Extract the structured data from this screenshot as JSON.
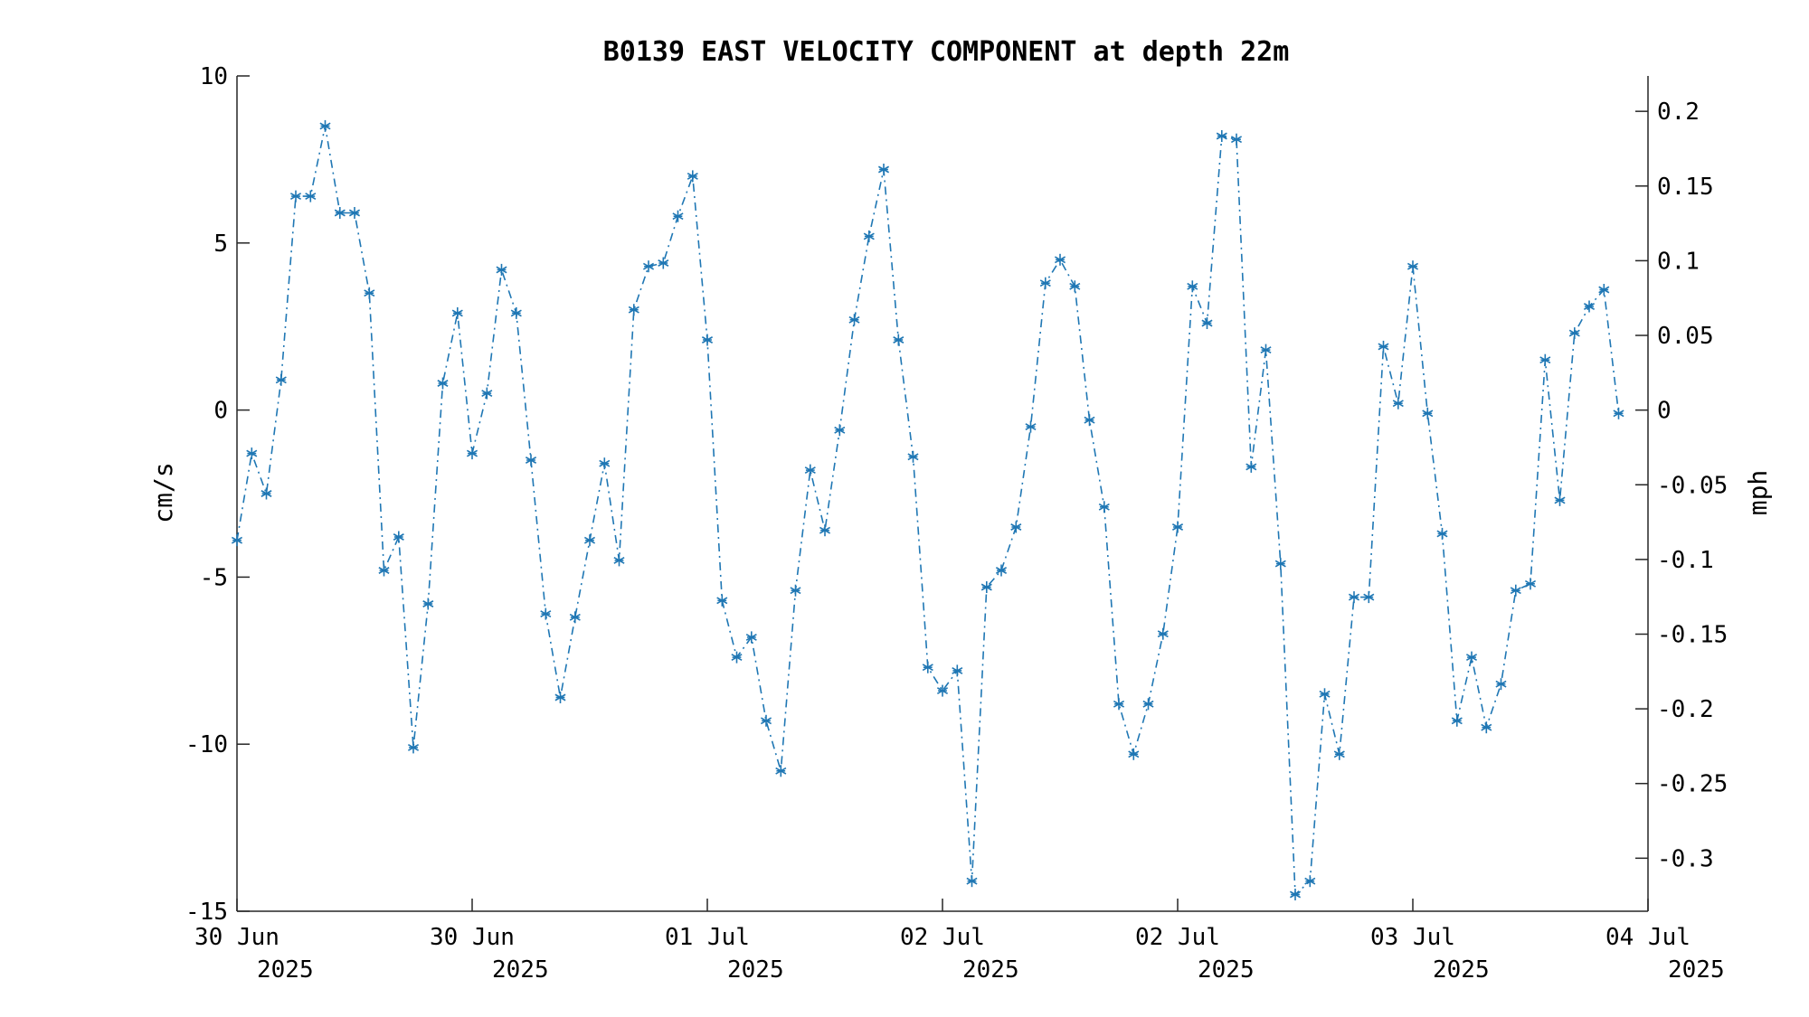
{
  "chart_data": {
    "type": "line",
    "title": "B0139 EAST VELOCITY COMPONENT at depth 22m",
    "ylabel": "cm/s",
    "ylabel_right": "mph",
    "ylim": [
      -15,
      10
    ],
    "y_ticks": [
      "10",
      "5",
      "0",
      "-5",
      "-10",
      "-15"
    ],
    "ylim_right": [
      -0.3355,
      0.2237
    ],
    "y_ticks_right": [
      "0.2",
      "0.15",
      "0.1",
      "0.05",
      "0",
      "-0.05",
      "-0.1",
      "-0.15",
      "-0.2",
      "-0.25",
      "-0.3"
    ],
    "xlim_hours": [
      0,
      96
    ],
    "x_ticks": [
      {
        "line1": "30 Jun",
        "line2": "2025"
      },
      {
        "line1": "30 Jun",
        "line2": "2025"
      },
      {
        "line1": "01 Jul",
        "line2": "2025"
      },
      {
        "line1": "02 Jul",
        "line2": "2025"
      },
      {
        "line1": "02 Jul",
        "line2": "2025"
      },
      {
        "line1": "03 Jul",
        "line2": "2025"
      },
      {
        "line1": "04 Jul",
        "line2": "2025"
      }
    ],
    "grid": false,
    "line_style": "dash-dot",
    "marker": "asterisk",
    "color": "#1f77b4",
    "series": [
      {
        "values": [
          -3.9,
          -1.3,
          -2.5,
          0.9,
          6.4,
          6.4,
          8.5,
          5.9,
          5.9,
          3.5,
          -4.8,
          -3.8,
          -10.1,
          -5.8,
          0.8,
          2.9,
          -1.3,
          0.5,
          4.2,
          2.9,
          -1.5,
          -6.1,
          -8.6,
          -6.2,
          -3.9,
          -1.6,
          -4.5,
          3.0,
          4.3,
          4.4,
          5.8,
          7.0,
          2.1,
          -5.7,
          -7.4,
          -6.8,
          -9.3,
          -10.8,
          -5.4,
          -1.8,
          -3.6,
          -0.6,
          2.7,
          5.2,
          7.2,
          2.1,
          -1.4,
          -7.7,
          -8.4,
          -7.8,
          -14.1,
          -5.3,
          -4.8,
          -3.5,
          -0.5,
          3.8,
          4.5,
          3.7,
          -0.3,
          -2.9,
          -8.8,
          -10.3,
          -8.8,
          -6.7,
          -3.5,
          3.7,
          2.6,
          8.2,
          8.1,
          -1.7,
          1.8,
          -4.6,
          -14.5,
          -14.1,
          -8.5,
          -10.3,
          -5.6,
          -5.6,
          1.9,
          0.2,
          4.3,
          -0.1,
          -3.7,
          -9.3,
          -7.4,
          -9.5,
          -8.2,
          -5.4,
          -5.2,
          1.5,
          -2.7,
          2.3,
          3.1,
          3.6,
          -0.1
        ]
      }
    ]
  }
}
